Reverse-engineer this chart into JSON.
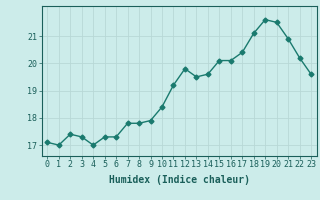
{
  "x": [
    0,
    1,
    2,
    3,
    4,
    5,
    6,
    7,
    8,
    9,
    10,
    11,
    12,
    13,
    14,
    15,
    16,
    17,
    18,
    19,
    20,
    21,
    22,
    23
  ],
  "y": [
    17.1,
    17.0,
    17.4,
    17.3,
    17.0,
    17.3,
    17.3,
    17.8,
    17.8,
    17.9,
    18.4,
    19.2,
    19.8,
    19.5,
    19.6,
    20.1,
    20.1,
    20.4,
    21.1,
    21.6,
    21.5,
    20.9,
    20.2,
    19.6
  ],
  "line_color": "#1a7a6e",
  "marker": "D",
  "marker_size": 2.5,
  "bg_color": "#ccecea",
  "grid_color": "#b8d8d6",
  "axis_color": "#1a5f5a",
  "xlabel": "Humidex (Indice chaleur)",
  "xlabel_fontsize": 7,
  "tick_fontsize": 6,
  "ylim": [
    16.6,
    22.1
  ],
  "xlim": [
    -0.5,
    23.5
  ],
  "yticks": [
    17,
    18,
    19,
    20,
    21
  ],
  "xticks": [
    0,
    1,
    2,
    3,
    4,
    5,
    6,
    7,
    8,
    9,
    10,
    11,
    12,
    13,
    14,
    15,
    16,
    17,
    18,
    19,
    20,
    21,
    22,
    23
  ]
}
